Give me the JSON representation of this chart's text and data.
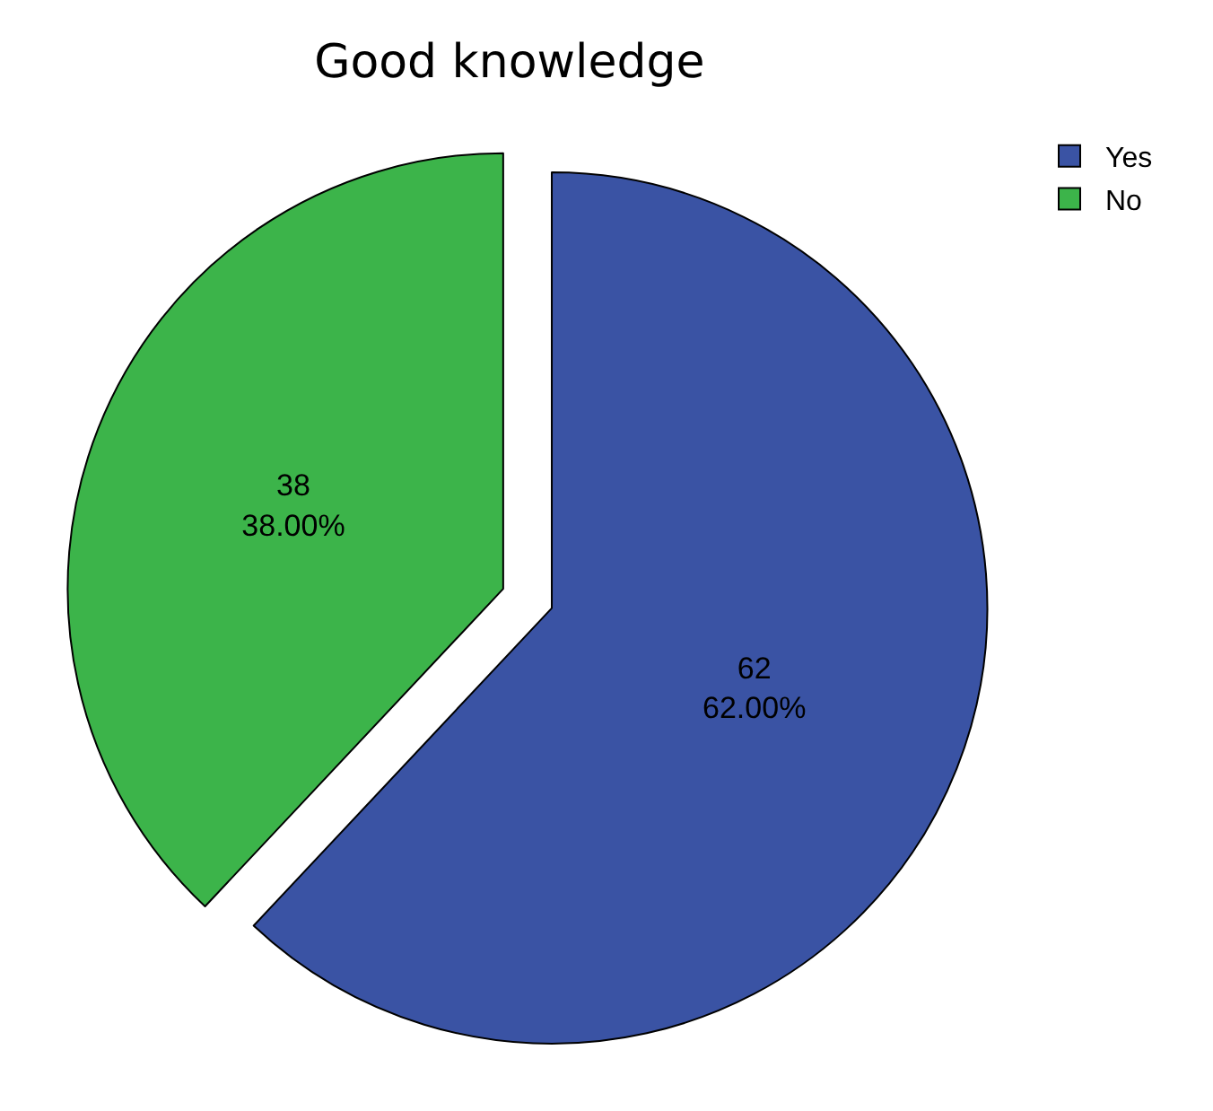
{
  "chart_data": {
    "type": "pie",
    "title": "Good knowledge",
    "categories": [
      "Yes",
      "No"
    ],
    "values": [
      62,
      38
    ],
    "colors": [
      "#3a53a4",
      "#3cb44a"
    ],
    "value_labels": [
      "62\n62.00%",
      "38\n38.00%"
    ],
    "legend": "top right"
  }
}
